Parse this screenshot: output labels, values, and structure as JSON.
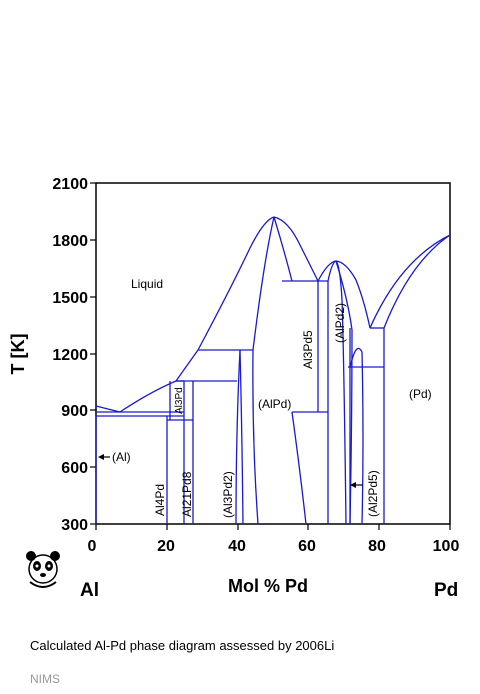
{
  "diagram": {
    "y_axis_title": "T [K]",
    "x_axis_title": "Mol % Pd",
    "left_element": "Al",
    "right_element": "Pd",
    "x_ticks": [
      "0",
      "20",
      "40",
      "60",
      "80",
      "100"
    ],
    "y_ticks": [
      "300",
      "600",
      "900",
      "1200",
      "1500",
      "1800",
      "2100"
    ],
    "phase_labels": {
      "liquid": "Liquid",
      "al": "(Al)",
      "al3pd": "Al3Pd",
      "al4pd": "Al4Pd",
      "al21pd8": "Al21Pd8",
      "al3pd2": "(Al3Pd2)",
      "alpd": "(AlPd)",
      "al3pd5": "Al3Pd5",
      "alpd2": "(AlPd2)",
      "al2pd5": "(Al2Pd5)",
      "pd": "(Pd)"
    },
    "line_color": "#1a1acc"
  },
  "chart_data": {
    "type": "phase-diagram",
    "x_range": [
      0,
      100
    ],
    "y_range": [
      300,
      2100
    ],
    "key_points": {
      "pd_melting": {
        "x": 100,
        "y": 1828
      },
      "al_melting": {
        "x": 0,
        "y": 933
      },
      "alpd_congruent_max": {
        "x": 50,
        "y": 1910
      },
      "alpd2_congruent_max": {
        "x": 67,
        "y": 1690
      },
      "al_eutectic": {
        "x": 7.5,
        "y": 890
      },
      "liquidus_minimum_near_64": {
        "x": 64,
        "y": 1590
      },
      "liquidus_minimum_near_77": {
        "x": 77,
        "y": 1330
      }
    },
    "horizontal_invariants_K": [
      890,
      873,
      1060,
      1220,
      1590,
      1330,
      1130
    ]
  }
}
